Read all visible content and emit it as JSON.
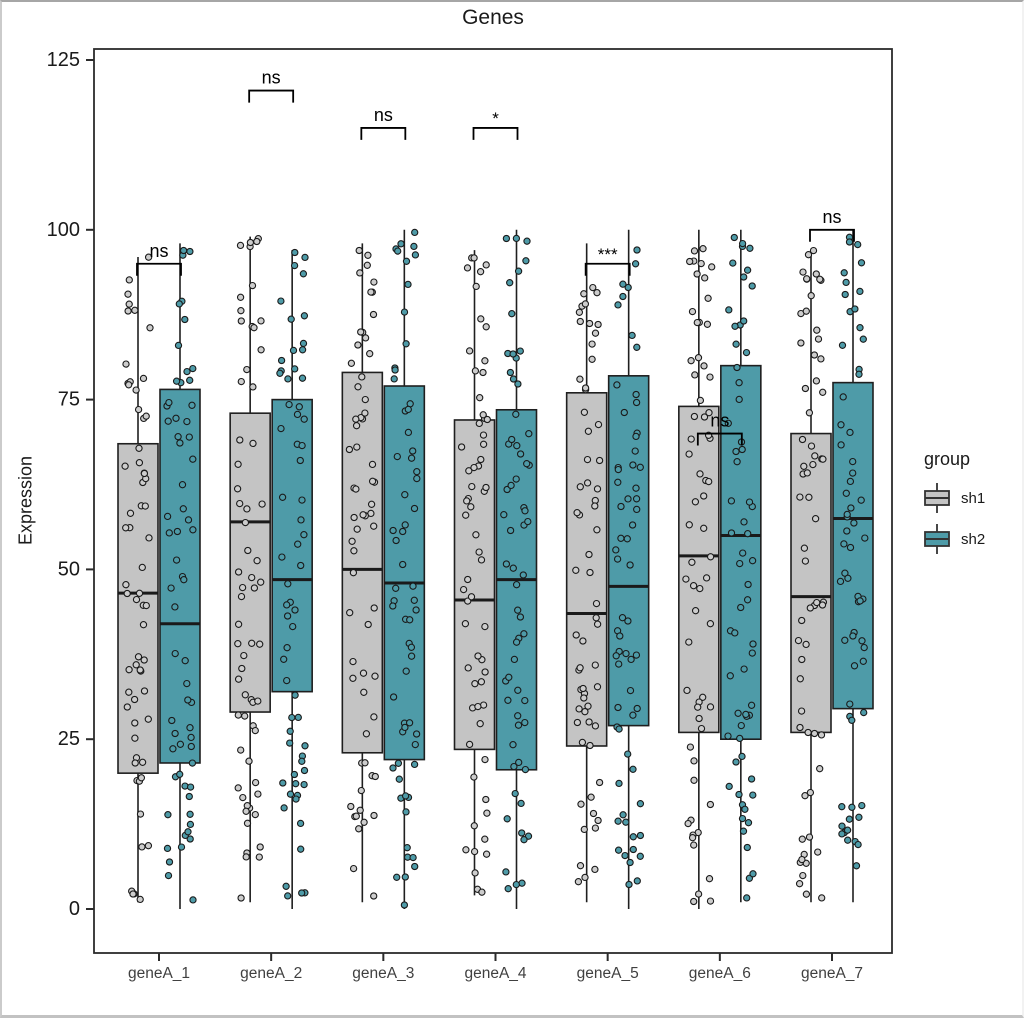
{
  "window": {
    "background": "#ffffff",
    "frame_color": "#a6a6a6"
  },
  "chart_data": {
    "type": "grouped_boxplot_with_jitter",
    "title": "Genes",
    "xlabel": "",
    "ylabel": "Expression",
    "y_ticks": [
      0,
      25,
      50,
      75,
      100,
      125
    ],
    "ylim": [
      -6.5,
      126.6
    ],
    "grid": "off",
    "panel_border": "on",
    "categories": [
      "geneA_1",
      "geneA_2",
      "geneA_3",
      "geneA_4",
      "geneA_5",
      "geneA_6",
      "geneA_7"
    ],
    "groups": [
      {
        "name": "sh1",
        "fill": "#C4C4C4"
      },
      {
        "name": "sh2",
        "fill": "#4E9BA8"
      }
    ],
    "legend": {
      "title": "group",
      "position": "right",
      "entries": [
        "sh1",
        "sh2"
      ]
    },
    "boxes_note": "values are [min, q1, median, q3, max] in Expression units, estimated from pixels",
    "boxes": {
      "sh1": [
        [
          1,
          20,
          46.5,
          68.5,
          96
        ],
        [
          1,
          29,
          57,
          73,
          99
        ],
        [
          1,
          23,
          50,
          79,
          98
        ],
        [
          2,
          23.5,
          45.5,
          72,
          97
        ],
        [
          1,
          24,
          43.5,
          76,
          98
        ],
        [
          0,
          26,
          52,
          74,
          100
        ],
        [
          1,
          26,
          46,
          70,
          97
        ]
      ],
      "sh2": [
        [
          0,
          21.5,
          42,
          76.5,
          98
        ],
        [
          0,
          32,
          48.5,
          75,
          97
        ],
        [
          0,
          22,
          48,
          77,
          100
        ],
        [
          0,
          20.5,
          48.5,
          73.5,
          100
        ],
        [
          0,
          27,
          47.5,
          78.5,
          100
        ],
        [
          1,
          25,
          55,
          80,
          100
        ],
        [
          1,
          29.5,
          57.5,
          77.5,
          100
        ]
      ]
    },
    "significance": [
      {
        "category": "geneA_1",
        "label": "ns",
        "y": 95
      },
      {
        "category": "geneA_2",
        "label": "ns",
        "y": 120.5
      },
      {
        "category": "geneA_3",
        "label": "ns",
        "y": 115
      },
      {
        "category": "geneA_4",
        "label": "*",
        "y": 115
      },
      {
        "category": "geneA_5",
        "label": "***",
        "y": 95
      },
      {
        "category": "geneA_6",
        "label": "ns",
        "y": 70
      },
      {
        "category": "geneA_7",
        "label": "ns",
        "y": 100
      }
    ],
    "jitter_points": {
      "style": "small circles, dark outline, group-colored fill, jittered within each box column",
      "approx_count_per_group": 63,
      "value_range": [
        0,
        100
      ],
      "distribution": "approximately uniform (positions are reconstructed, not exact)",
      "seed": 2024
    },
    "colors": {
      "box_stroke": "#1f1f1f",
      "median_stroke": "#1a1a1a",
      "point_stroke": "#1a1a1a",
      "point_fill_sh1": "#CDCDCD",
      "point_fill_sh2": "#4E9BA8",
      "bracket": "#000000",
      "axis": "#2b2b2b",
      "tick_label": "#1a1a1a",
      "x_label_color": "#404040"
    }
  }
}
